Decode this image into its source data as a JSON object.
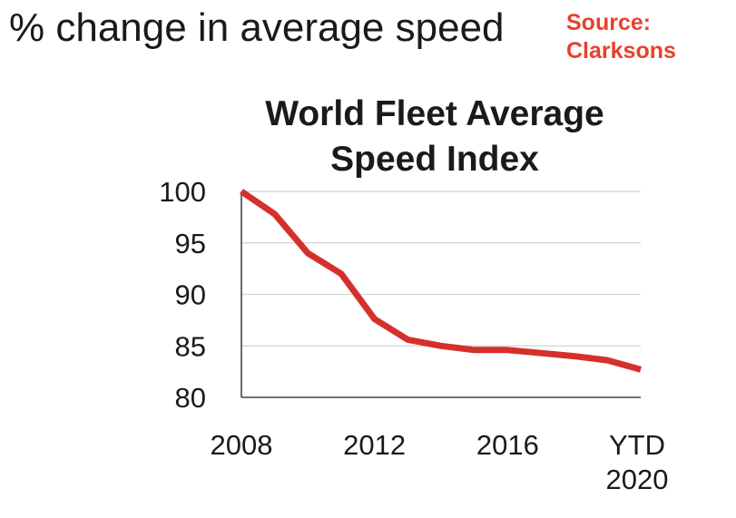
{
  "page": {
    "headline": "% change in average speed",
    "source_line1": "Source:",
    "source_line2": "Clarksons",
    "source_color": "#e8412c"
  },
  "chart_data": {
    "type": "line",
    "title_line1": "World Fleet Average",
    "title_line2": "Speed Index",
    "xlabel": "",
    "ylabel": "",
    "x": [
      "2008",
      "2009",
      "2010",
      "2011",
      "2012",
      "2013",
      "2014",
      "2015",
      "2016",
      "2017",
      "2018",
      "2019",
      "YTD 2020"
    ],
    "x_tick_labels": [
      {
        "lines": [
          "2008"
        ],
        "index": 0
      },
      {
        "lines": [
          "2012"
        ],
        "index": 4
      },
      {
        "lines": [
          "2016"
        ],
        "index": 8
      },
      {
        "lines": [
          "YTD",
          "2020"
        ],
        "index": 12
      }
    ],
    "series": [
      {
        "values": [
          100,
          97.8,
          94,
          92,
          87.6,
          85.6,
          85,
          84.6,
          84.6,
          84.3,
          84,
          83.6,
          82.7
        ],
        "color": "#d6302c"
      }
    ],
    "ylim": [
      80,
      100
    ],
    "yticks": [
      80,
      85,
      90,
      95,
      100
    ],
    "grid": true,
    "legend": "none"
  }
}
